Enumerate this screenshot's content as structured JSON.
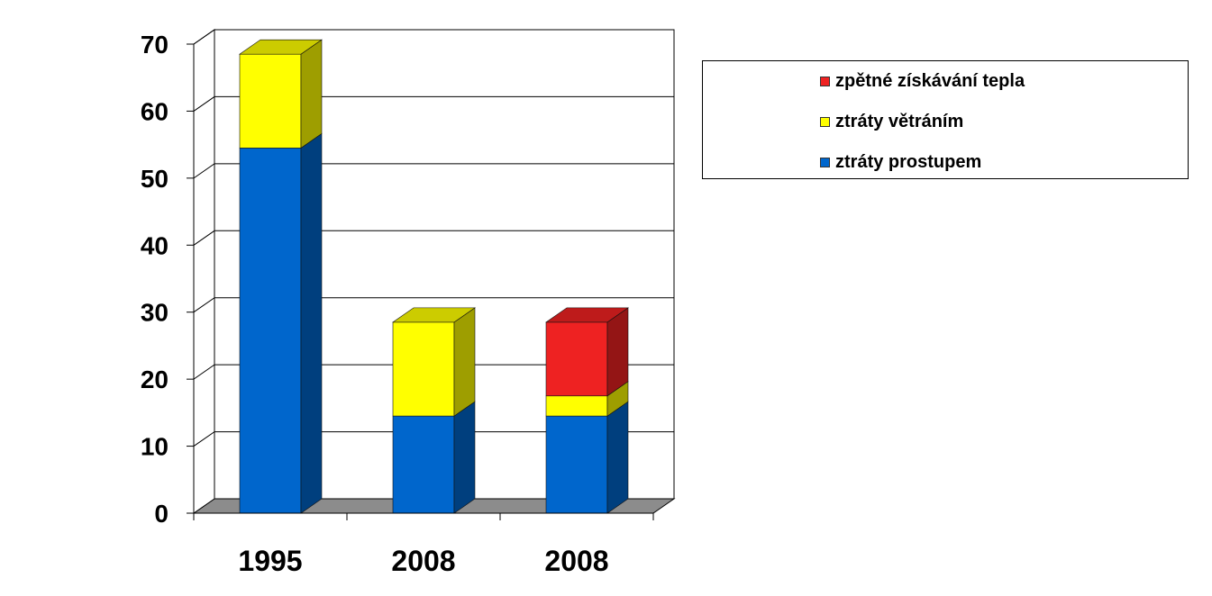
{
  "chart_data": {
    "type": "bar",
    "stacked": true,
    "three_d": true,
    "categories": [
      "1995",
      "2008",
      "2008"
    ],
    "series": [
      {
        "name": "ztráty prostupem",
        "values": [
          54.5,
          14.5,
          14.5
        ],
        "color": "#0066CC"
      },
      {
        "name": "ztráty větráním",
        "values": [
          14,
          14,
          3
        ],
        "color": "#FFFF00"
      },
      {
        "name": "zpětné získávání tepla",
        "values": [
          0,
          0,
          11
        ],
        "color": "#EE2222"
      }
    ],
    "ylim": [
      0,
      70
    ],
    "yticks": [
      "0",
      "10",
      "20",
      "30",
      "40",
      "50",
      "60",
      "70"
    ],
    "grid": true,
    "legend_position": "top-right",
    "legend_order": [
      "zpětné získávání tepla",
      "ztráty větráním",
      "ztráty prostupem"
    ]
  }
}
